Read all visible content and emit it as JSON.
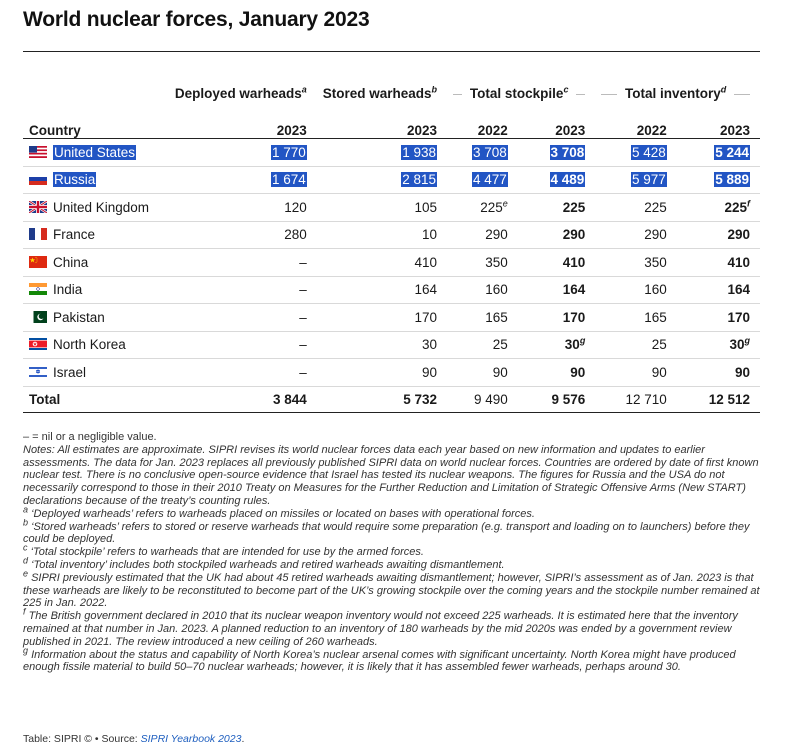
{
  "title": "World nuclear forces, January 2023",
  "headers": {
    "deployed": "Deployed warheads",
    "deployed_sup": "a",
    "stored": "Stored warheads",
    "stored_sup": "b",
    "total_stockpile": "Total stockpile",
    "total_stockpile_sup": "c",
    "total_inventory": "Total inventory",
    "total_inventory_sup": "d",
    "country": "Country",
    "years": [
      "2023",
      "2023",
      "2022",
      "2023",
      "2022",
      "2023"
    ]
  },
  "rows": [
    {
      "country": "United States",
      "flag": "us-flag",
      "highlight": true,
      "values": [
        "1 770",
        "1 938",
        "3 708",
        "3 708",
        "5 428",
        "5 244"
      ],
      "sups": [
        "",
        "",
        "",
        "",
        "",
        ""
      ]
    },
    {
      "country": "Russia",
      "flag": "russia-flag",
      "highlight": true,
      "values": [
        "1 674",
        "2 815",
        "4 477",
        "4 489",
        "5 977",
        "5 889"
      ],
      "sups": [
        "",
        "",
        "",
        "",
        "",
        ""
      ]
    },
    {
      "country": "United Kingdom",
      "flag": "uk-flag",
      "highlight": false,
      "values": [
        "120",
        "105",
        "225",
        "225",
        "225",
        "225"
      ],
      "sups": [
        "",
        "",
        "e",
        "",
        "",
        "f"
      ]
    },
    {
      "country": "France",
      "flag": "france-flag",
      "highlight": false,
      "values": [
        "280",
        "10",
        "290",
        "290",
        "290",
        "290"
      ],
      "sups": [
        "",
        "",
        "",
        "",
        "",
        ""
      ]
    },
    {
      "country": "China",
      "flag": "china-flag",
      "highlight": false,
      "values": [
        "–",
        "410",
        "350",
        "410",
        "350",
        "410"
      ],
      "sups": [
        "",
        "",
        "",
        "",
        "",
        ""
      ]
    },
    {
      "country": "India",
      "flag": "india-flag",
      "highlight": false,
      "values": [
        "–",
        "164",
        "160",
        "164",
        "160",
        "164"
      ],
      "sups": [
        "",
        "",
        "",
        "",
        "",
        ""
      ]
    },
    {
      "country": "Pakistan",
      "flag": "pakistan-flag",
      "highlight": false,
      "values": [
        "–",
        "170",
        "165",
        "170",
        "165",
        "170"
      ],
      "sups": [
        "",
        "",
        "",
        "",
        "",
        ""
      ]
    },
    {
      "country": "North Korea",
      "flag": "north-korea-flag",
      "highlight": false,
      "values": [
        "–",
        "30",
        "25",
        "30",
        "25",
        "30"
      ],
      "sups": [
        "",
        "",
        "",
        "g",
        "",
        "g"
      ]
    },
    {
      "country": "Israel",
      "flag": "israel-flag",
      "highlight": false,
      "values": [
        "–",
        "90",
        "90",
        "90",
        "90",
        "90"
      ],
      "sups": [
        "",
        "",
        "",
        "",
        "",
        ""
      ]
    }
  ],
  "total": {
    "label": "Total",
    "values": [
      "3 844",
      "5 732",
      "9 490",
      "9 576",
      "12 710",
      "12 512"
    ]
  },
  "notes": {
    "nil": "– = nil or a negligible value.",
    "main": "Notes: All estimates are approximate. SIPRI revises its world nuclear forces data each year based on new information and updates to earlier assessments. The data for Jan. 2023 replaces all previously published SIPRI data on world nuclear forces. Countries are ordered by date of first known nuclear test. There is no conclusive open-source evidence that Israel has tested its nuclear weapons. The figures for Russia and the USA do not necessarily correspond to those in their 2010 Treaty on Measures for the Further Reduction and Limitation of Strategic Offensive Arms (New START) declarations because of the treaty’s counting rules.",
    "footnotes": [
      {
        "mark": "a",
        "text": "‘Deployed warheads’ refers to warheads placed on missiles or located on bases with operational forces."
      },
      {
        "mark": "b",
        "text": "‘Stored warheads’ refers to stored or reserve warheads that would require some preparation (e.g. transport and loading on to launchers) before they could be deployed."
      },
      {
        "mark": "c",
        "text": "‘Total stockpile’ refers to warheads that are intended for use by the armed forces."
      },
      {
        "mark": "d",
        "text": "‘Total inventory’ includes both stockpiled warheads and retired warheads awaiting dismantlement."
      },
      {
        "mark": "e",
        "text": "SIPRI previously estimated that the UK had about 45 retired warheads awaiting dismantlement; however, SIPRI’s assessment as of Jan. 2023 is that these warheads are likely to be reconstituted to become part of the UK’s growing stockpile over the coming years and the stockpile number remained at 225 in Jan. 2022."
      },
      {
        "mark": "f",
        "text": "The British government declared in 2010 that its nuclear weapon inventory would not exceed 225 warheads. It is estimated here that the inventory remained at that number in Jan. 2023. A planned reduction to an inventory of 180 warheads by the mid 2020s was ended by a government review published in 2021. The review introduced a new ceiling of 260 warheads."
      },
      {
        "mark": "g",
        "text": "Information about the status and capability of North Korea’s nuclear arsenal comes with significant uncertainty. North Korea might have produced enough fissile material to build 50–70 nuclear warheads; however, it is likely that it has assembled fewer warheads, perhaps around 30."
      }
    ]
  },
  "source": {
    "prefix": "Table: SIPRI © • Source: ",
    "link": "SIPRI Yearbook 2023",
    "suffix": "."
  }
}
